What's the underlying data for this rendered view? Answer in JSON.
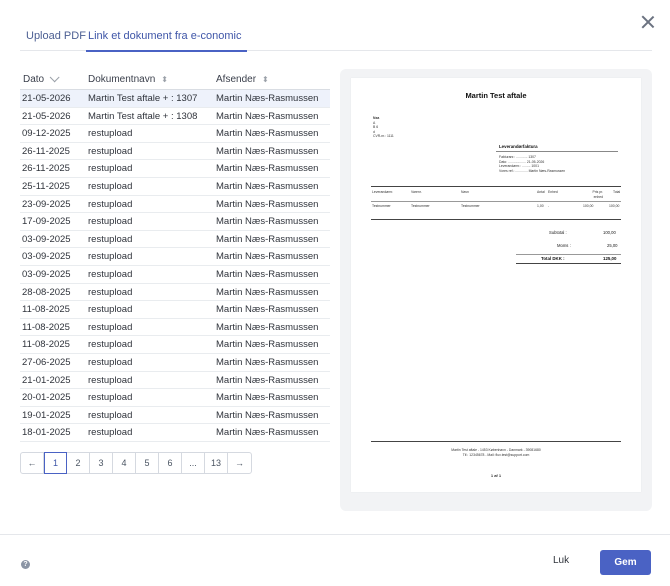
{
  "tabs": [
    {
      "label": "Upload PDF",
      "active": false
    },
    {
      "label": "Link et dokument fra e-conomic",
      "active": true
    }
  ],
  "table": {
    "headers": [
      "Dato",
      "Dokumentnavn",
      "Afsender"
    ],
    "rows": [
      {
        "date": "21-05-2026",
        "name": "Martin Test aftale + : 1307",
        "sender": "Martin Næs-Rasmussen",
        "selected": true
      },
      {
        "date": "21-05-2026",
        "name": "Martin Test aftale + : 1308",
        "sender": "Martin Næs-Rasmussen"
      },
      {
        "date": "09-12-2025",
        "name": "restupload",
        "sender": "Martin Næs-Rasmussen"
      },
      {
        "date": "26-11-2025",
        "name": "restupload",
        "sender": "Martin Næs-Rasmussen"
      },
      {
        "date": "26-11-2025",
        "name": "restupload",
        "sender": "Martin Næs-Rasmussen"
      },
      {
        "date": "25-11-2025",
        "name": "restupload",
        "sender": "Martin Næs-Rasmussen"
      },
      {
        "date": "23-09-2025",
        "name": "restupload",
        "sender": "Martin Næs-Rasmussen"
      },
      {
        "date": "17-09-2025",
        "name": "restupload",
        "sender": "Martin Næs-Rasmussen"
      },
      {
        "date": "03-09-2025",
        "name": "restupload",
        "sender": "Martin Næs-Rasmussen"
      },
      {
        "date": "03-09-2025",
        "name": "restupload",
        "sender": "Martin Næs-Rasmussen"
      },
      {
        "date": "03-09-2025",
        "name": "restupload",
        "sender": "Martin Næs-Rasmussen"
      },
      {
        "date": "28-08-2025",
        "name": "restupload",
        "sender": "Martin Næs-Rasmussen"
      },
      {
        "date": "11-08-2025",
        "name": "restupload",
        "sender": "Martin Næs-Rasmussen"
      },
      {
        "date": "11-08-2025",
        "name": "restupload",
        "sender": "Martin Næs-Rasmussen"
      },
      {
        "date": "11-08-2025",
        "name": "restupload",
        "sender": "Martin Næs-Rasmussen"
      },
      {
        "date": "27-06-2025",
        "name": "restupload",
        "sender": "Martin Næs-Rasmussen"
      },
      {
        "date": "21-01-2025",
        "name": "restupload",
        "sender": "Martin Næs-Rasmussen"
      },
      {
        "date": "20-01-2025",
        "name": "restupload",
        "sender": "Martin Næs-Rasmussen"
      },
      {
        "date": "19-01-2025",
        "name": "restupload",
        "sender": "Martin Næs-Rasmussen"
      },
      {
        "date": "18-01-2025",
        "name": "restupload",
        "sender": "Martin Næs-Rasmussen"
      }
    ]
  },
  "pagination": {
    "prev": "←",
    "pages": [
      "1",
      "2",
      "3",
      "4",
      "5",
      "6",
      "...",
      "13"
    ],
    "current": "1",
    "next": "→"
  },
  "preview": {
    "title": "Martin Test aftale",
    "recipient": [
      "Nxa",
      "A",
      "B 6",
      "d",
      "CVR-nr.: 1111"
    ],
    "doc_type": "Leverandørfaktura",
    "meta": [
      "Fakturanr.: ............ 1307",
      "Dato: ................... 21-05-2026",
      "Leverandørnr.: ......... 1001",
      "Vores ref.: ............. Martin Næs-Rasmussen"
    ],
    "line_headers": [
      "Leverandørnr.",
      "Varenr.",
      "Navn",
      "Antal",
      "Enhed",
      "Pris pr. enhed",
      "Total"
    ],
    "line_row": [
      "Testnummer",
      "Testnummer",
      "Testnummer",
      "1,00",
      "-",
      "100,00",
      "100,00"
    ],
    "subtotal_label": "Subtotal :",
    "subtotal_value": "100,00",
    "vat_label": "Moms :",
    "vat_value": "25,00",
    "total_label": "Total DKK :",
    "total_value": "125,00",
    "footer_line1": "Martin Test aftale - 1453 København - Danmark - 39081680",
    "footer_line2": "Tlf.: 12345678 - Mail: flux.test@support.com",
    "page_label": "1 af 1"
  },
  "footer": {
    "help": "?",
    "close_label": "Luk",
    "save_label": "Gem"
  },
  "colors": {
    "accent": "#4a62c4",
    "selected_row": "#eef2fb"
  }
}
